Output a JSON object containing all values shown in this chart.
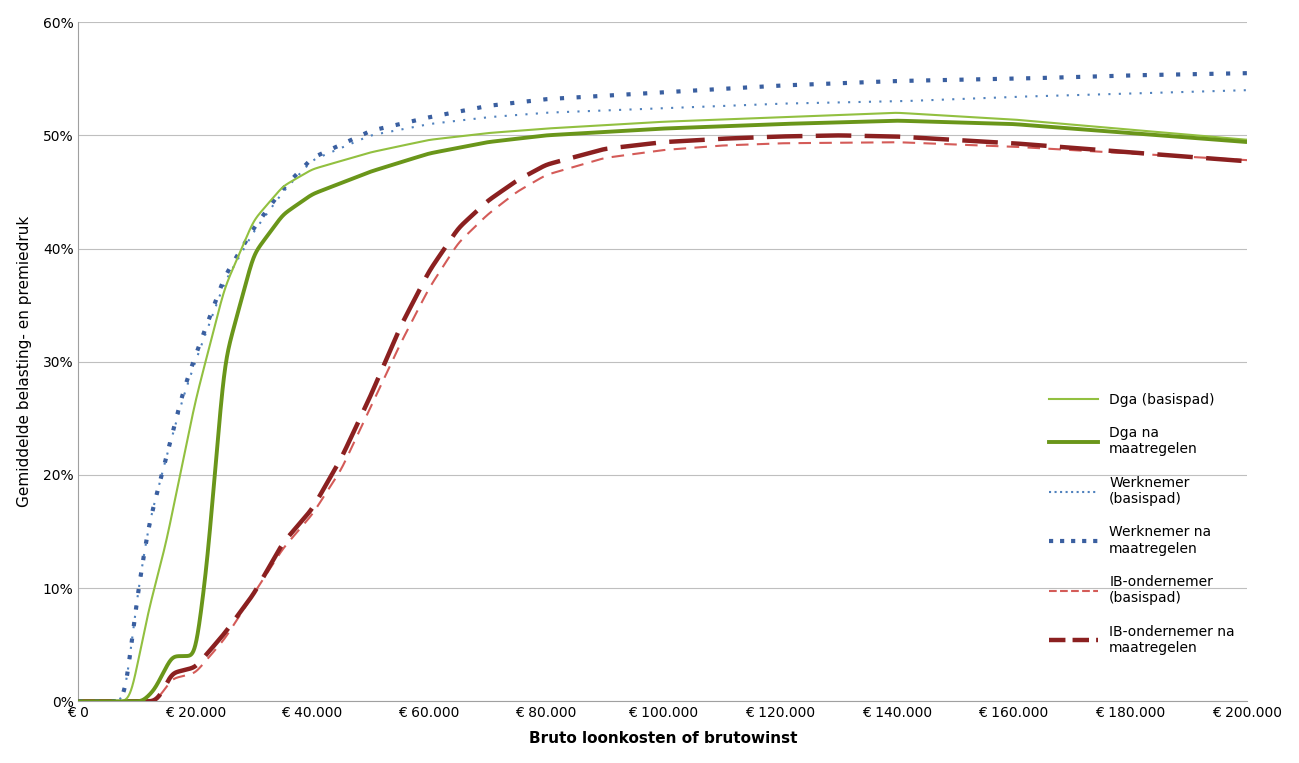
{
  "title": "",
  "xlabel": "Bruto loonkosten of brutowinst",
  "ylabel": "Gemiddelde belasting- en premiedruk",
  "xlim": [
    0,
    200000
  ],
  "ylim": [
    0,
    0.6
  ],
  "xticks": [
    0,
    20000,
    40000,
    60000,
    80000,
    100000,
    120000,
    140000,
    160000,
    180000,
    200000
  ],
  "yticks": [
    0,
    0.1,
    0.2,
    0.3,
    0.4,
    0.5,
    0.6
  ],
  "ytick_labels": [
    "0%",
    "10%",
    "20%",
    "30%",
    "40%",
    "50%",
    "60%"
  ],
  "xtick_labels": [
    "€ 0",
    "€ 20.000",
    "€ 40.000",
    "€ 60.000",
    "€ 80.000",
    "€ 100.000",
    "€ 120.000",
    "€ 140.000",
    "€ 160.000",
    "€ 180.000",
    "€ 200.000"
  ],
  "legend_entries": [
    "Dga (basispad)",
    "Dga na\nmaatregelen",
    "Werknemer\n(basispad)",
    "Werknemer na\nmaatregelen",
    "IB-ondernemer\n(basispad)",
    "IB-ondernemer na\nmaatregelen"
  ],
  "color_dga_basis": "#92c040",
  "color_dga_na": "#6a961a",
  "color_werknemer_basis": "#4f81bd",
  "color_werknemer_na": "#3a5fa0",
  "color_ib_basis": "#d45b58",
  "color_ib_na": "#8b2020",
  "background_color": "#ffffff",
  "grid_color": "#bfbfbf"
}
